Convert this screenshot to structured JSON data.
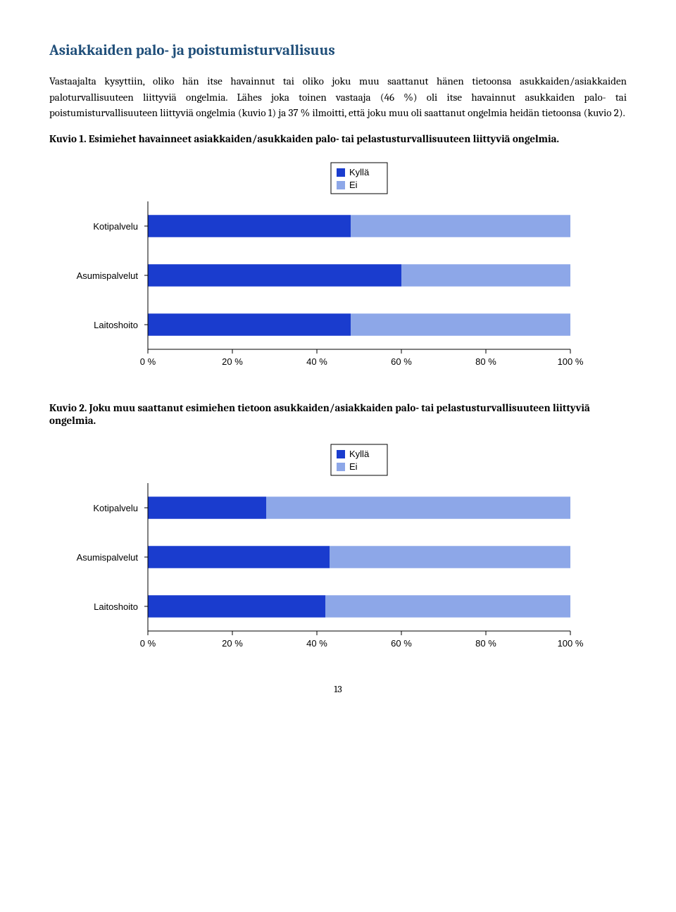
{
  "heading": "Asiakkaiden palo- ja poistumisturvallisuus",
  "paragraph": "Vastaajalta kysyttiin, oliko hän itse havainnut tai oliko joku muu saattanut hänen tietoonsa asukkaiden/asiakkaiden paloturvallisuuteen liittyviä ongelmia. Lähes joka toinen vastaaja (46 %) oli itse havainnut asukkaiden palo- tai poistumisturvallisuuteen liittyviä ongelmia (kuvio 1) ja 37 % ilmoitti, että joku muu oli saattanut ongelmia heidän tietoonsa (kuvio 2).",
  "caption1": "Kuvio 1. Esimiehet havainneet asiakkaiden/asukkaiden palo- tai pelastusturvallisuuteen liittyviä ongelmia.",
  "caption2": "Kuvio 2. Joku muu saattanut esimiehen tietoon asukkaiden/asiakkaiden palo- tai pelastusturvallisuuteen liittyviä ongelmia.",
  "chart1": {
    "type": "stacked-bar-horizontal",
    "legend": {
      "items": [
        "Kyllä",
        "Ei"
      ],
      "colors": [
        "#1a3cce",
        "#8da7e8"
      ]
    },
    "categories": [
      "Kotipalvelu",
      "Asumispalvelut",
      "Laitoshoito"
    ],
    "yes_pct": [
      48,
      60,
      48
    ],
    "bar_color_yes": "#1a3cce",
    "bar_color_no": "#8da7e8",
    "xticks": [
      "0 %",
      "20 %",
      "40 %",
      "60 %",
      "80 %",
      "100 %"
    ],
    "axis_color": "#000000",
    "background_color": "#ffffff",
    "label_font": "Arial, sans-serif",
    "label_fontsize": 13
  },
  "chart2": {
    "type": "stacked-bar-horizontal",
    "legend": {
      "items": [
        "Kyllä",
        "Ei"
      ],
      "colors": [
        "#1a3cce",
        "#8da7e8"
      ]
    },
    "categories": [
      "Kotipalvelu",
      "Asumispalvelut",
      "Laitoshoito"
    ],
    "yes_pct": [
      28,
      43,
      42
    ],
    "bar_color_yes": "#1a3cce",
    "bar_color_no": "#8da7e8",
    "xticks": [
      "0 %",
      "20 %",
      "40 %",
      "60 %",
      "80 %",
      "100 %"
    ],
    "axis_color": "#000000",
    "background_color": "#ffffff",
    "label_font": "Arial, sans-serif",
    "label_fontsize": 13
  },
  "page_number": "13"
}
